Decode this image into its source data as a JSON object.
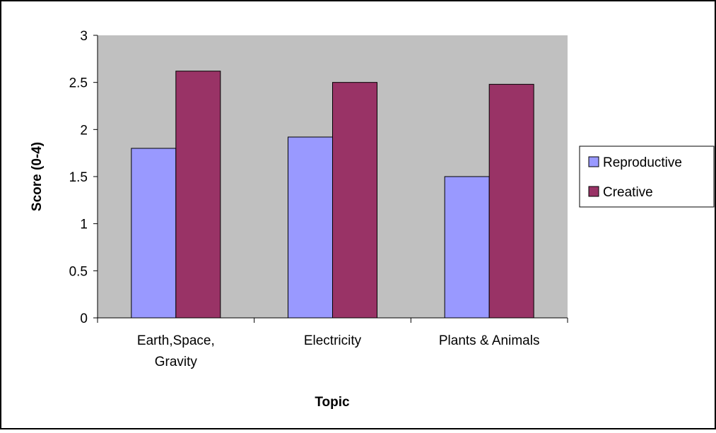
{
  "chart_data": {
    "type": "bar",
    "categories": [
      "Earth,Space,\nGravity",
      "Electricity",
      "Plants & Animals"
    ],
    "series": [
      {
        "name": "Reproductive",
        "values": [
          1.8,
          1.92,
          1.5
        ],
        "color": "#9999ff"
      },
      {
        "name": "Creative",
        "values": [
          2.62,
          2.5,
          2.48
        ],
        "color": "#993366"
      }
    ],
    "xlabel": "Topic",
    "ylabel": "Score (0-4)",
    "ylim": [
      0,
      3
    ],
    "yticks": [
      "0",
      "0.5",
      "1",
      "1.5",
      "2",
      "2.5",
      "3"
    ],
    "ytick_values": [
      0,
      0.5,
      1,
      1.5,
      2,
      2.5,
      3
    ],
    "plot_background": "#c0c0c0",
    "grid": false,
    "legend_position": "right"
  }
}
